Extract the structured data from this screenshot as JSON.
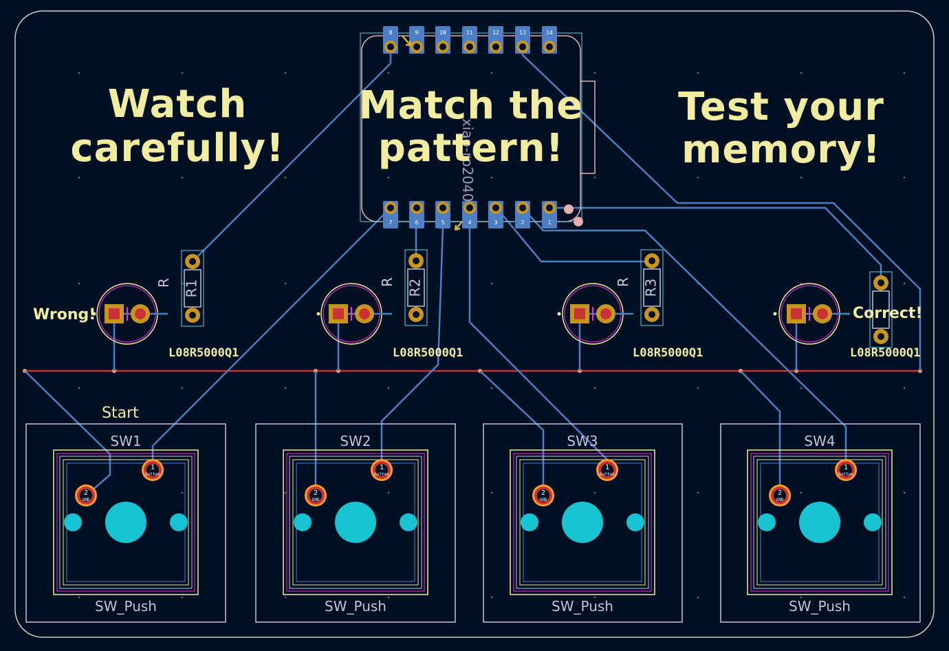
{
  "texts": {
    "watch": [
      "Watch",
      "carefully!"
    ],
    "match": [
      "Match the",
      "pattern!"
    ],
    "test": [
      "Test your",
      "memory!"
    ],
    "wrong": "Wrong!",
    "correct": "Correct!",
    "start": "Start"
  },
  "leds": [
    {
      "value": "L08R5000Q1"
    },
    {
      "value": "L08R5000Q1"
    },
    {
      "value": "L08R5000Q1"
    },
    {
      "value": "L08R5000Q1"
    }
  ],
  "resistors": [
    {
      "ref": "R1",
      "mark": "R"
    },
    {
      "ref": "R2",
      "mark": "R"
    },
    {
      "ref": "R3",
      "mark": "R"
    },
    {
      "ref": "",
      "mark": ""
    }
  ],
  "switches": [
    {
      "ref": "SW1",
      "value": "SW_Push"
    },
    {
      "ref": "SW2",
      "value": "SW_Push"
    },
    {
      "ref": "SW3",
      "value": "SW_Push"
    },
    {
      "ref": "SW4",
      "value": "SW_Push"
    }
  ],
  "switch_pads": {
    "pin1": "1",
    "pin2": "2",
    "pin1_net": "button",
    "pin2_net": "GND"
  },
  "mcu": {
    "top_pins": [
      "8",
      "9",
      "10",
      "11",
      "12",
      "13",
      "14"
    ],
    "bottom_pins": [
      "7",
      "6",
      "5",
      "4",
      "3",
      "2",
      "1"
    ]
  },
  "colors": {
    "board_bg": "#001023",
    "edge_cuts": "#d0d2cd",
    "front_copper": "#c83434",
    "back_copper": "#4d7fc4",
    "silkscreen": "#f2eca0",
    "courtyard": "#ff26e2",
    "pad_copper": "#c8961e",
    "npth": "#19c4d2",
    "fab": "#c4c4d8"
  }
}
